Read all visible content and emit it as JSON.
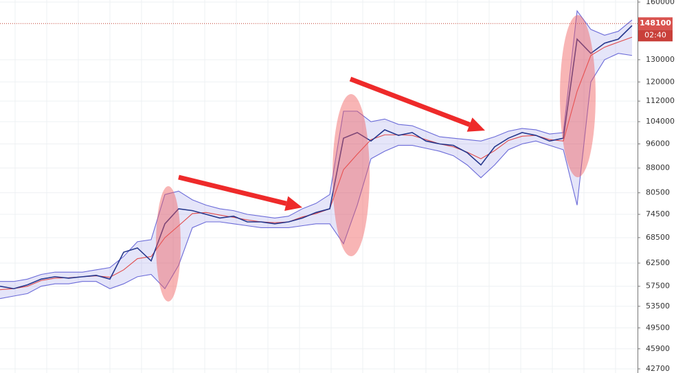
{
  "chart_data": {
    "type": "line",
    "log_scale": true,
    "grid": true,
    "x": [
      0,
      1,
      2,
      3,
      4,
      5,
      6,
      7,
      8,
      9,
      10,
      11,
      12,
      13,
      14,
      15,
      16,
      17,
      18,
      19,
      20,
      21,
      22,
      23,
      24,
      25,
      26,
      27,
      28,
      29,
      30,
      31,
      32,
      33,
      34,
      35,
      36,
      37,
      38,
      39,
      40,
      41,
      42,
      43,
      44,
      45,
      46
    ],
    "xlim": [
      0,
      46
    ],
    "series": [
      {
        "role": "upper",
        "color": "#6a6ad8",
        "values": [
          58500,
          58500,
          59000,
          60000,
          60500,
          60500,
          60500,
          61000,
          61500,
          64000,
          67500,
          68000,
          80000,
          81000,
          78500,
          77000,
          76000,
          75500,
          74500,
          74000,
          73500,
          74000,
          76000,
          77500,
          80000,
          108000,
          108000,
          104000,
          105000,
          103000,
          102500,
          100500,
          98500,
          98000,
          97500,
          97000,
          98500,
          100500,
          101500,
          101000,
          99500,
          100000,
          155000,
          145000,
          142000,
          144000,
          150000
        ]
      },
      {
        "role": "lower",
        "color": "#6a6ad8",
        "values": [
          55000,
          55500,
          56000,
          57500,
          58000,
          58000,
          58500,
          58500,
          57000,
          58000,
          59500,
          60000,
          57000,
          62000,
          71000,
          72500,
          72500,
          72000,
          71500,
          71000,
          71000,
          71000,
          71500,
          72000,
          72000,
          67000,
          77000,
          91000,
          93500,
          95500,
          95500,
          94500,
          93500,
          92000,
          89000,
          85000,
          89000,
          94000,
          96000,
          97000,
          95500,
          94000,
          77000,
          120000,
          130000,
          133000,
          132000
        ]
      },
      {
        "role": "average",
        "color": "#e04848",
        "values": [
          56800,
          57000,
          57500,
          58700,
          59200,
          59300,
          59500,
          59700,
          59400,
          61000,
          63500,
          64000,
          68500,
          71500,
          74700,
          75000,
          74300,
          73700,
          73000,
          72500,
          72300,
          72500,
          73800,
          74700,
          76000,
          87500,
          92500,
          97500,
          99200,
          99200,
          99000,
          97500,
          96000,
          95000,
          93200,
          91000,
          93700,
          97200,
          98700,
          99000,
          97500,
          97000,
          116000,
          132000,
          136000,
          138500,
          141000
        ]
      },
      {
        "role": "price",
        "color": "#24368c",
        "values": [
          57500,
          57000,
          57800,
          59000,
          59500,
          59200,
          59500,
          59800,
          59000,
          65000,
          66000,
          63000,
          72000,
          76000,
          75500,
          74500,
          73500,
          74000,
          72500,
          72500,
          72000,
          72500,
          73500,
          75000,
          76000,
          98000,
          100000,
          97000,
          101000,
          99000,
          100000,
          97000,
          96000,
          95500,
          93000,
          89000,
          95000,
          98000,
          100000,
          99000,
          97000,
          98000,
          140000,
          133000,
          138000,
          140000,
          147000
        ]
      }
    ],
    "ylim": [
      42700,
      160000
    ],
    "yticks": [
      160000,
      130000,
      120000,
      112000,
      104000,
      96000,
      88000,
      80500,
      74500,
      68500,
      62500,
      57500,
      53500,
      49500,
      45900,
      42700
    ],
    "last_price": 148100,
    "timer": "02:40"
  }
}
